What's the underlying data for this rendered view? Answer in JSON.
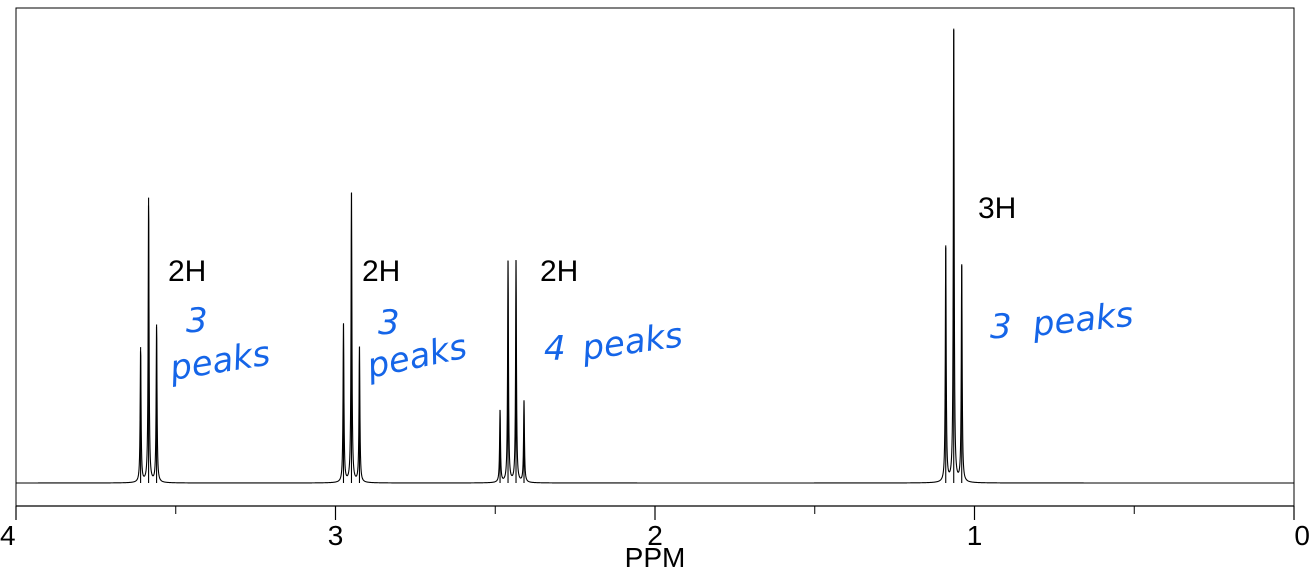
{
  "colors": {
    "spectrum": "#000000",
    "annotation": "#1565e8",
    "background": "#ffffff"
  },
  "chart_data": {
    "type": "line",
    "xlabel": "PPM",
    "xlim": [
      4,
      0
    ],
    "x_reversed": true,
    "x_ticks": [
      {
        "value": 4,
        "label": "4"
      },
      {
        "value": 3,
        "label": "3"
      },
      {
        "value": 2,
        "label": "2"
      },
      {
        "value": 1,
        "label": "1"
      },
      {
        "value": 0,
        "label": "0"
      }
    ],
    "x_minor_ticks": [
      3.5,
      2.5,
      1.5,
      0.5
    ],
    "ylim": [
      0,
      1
    ],
    "grid": false,
    "multiplets": [
      {
        "integration": "2H",
        "note_number": "3",
        "note_word": "peaks",
        "peaks": [
          [
            3.61,
            0.3
          ],
          [
            3.585,
            0.63
          ],
          [
            3.56,
            0.35
          ]
        ]
      },
      {
        "integration": "2H",
        "note_number": "3",
        "note_word": "peaks",
        "peaks": [
          [
            2.975,
            0.35
          ],
          [
            2.95,
            0.64
          ],
          [
            2.925,
            0.3
          ]
        ]
      },
      {
        "integration": "2H",
        "note_number": "4",
        "note_word": "peaks",
        "peaks": [
          [
            2.485,
            0.16
          ],
          [
            2.46,
            0.49
          ],
          [
            2.435,
            0.49
          ],
          [
            2.41,
            0.18
          ]
        ]
      },
      {
        "integration": "3H",
        "note_number": "3",
        "note_word": "peaks",
        "peaks": [
          [
            1.09,
            0.52
          ],
          [
            1.065,
            1.0
          ],
          [
            1.04,
            0.48
          ]
        ]
      }
    ]
  }
}
